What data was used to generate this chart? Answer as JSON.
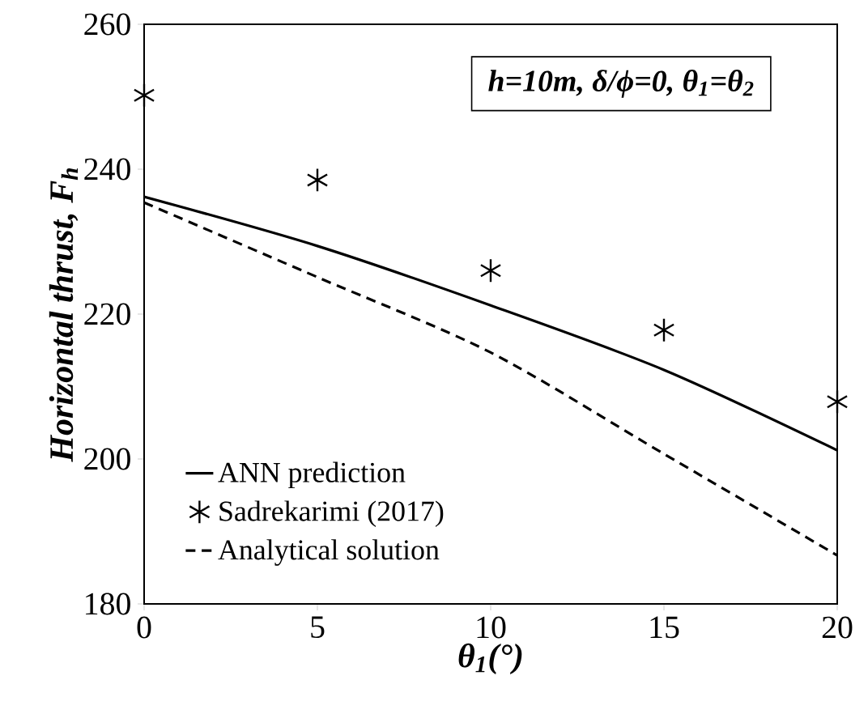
{
  "chart_data": {
    "type": "line",
    "xlabel": "θ$_{1}$(°)",
    "ylabel": "Horizontal thrust, F$_{h}$",
    "annotations": [
      "h=10m, δ/ϕ=0, θ$_{1}$=θ$_{2}$"
    ],
    "xlim": [
      0,
      20
    ],
    "xticks": [
      0,
      5,
      10,
      15,
      20
    ],
    "ylim": [
      180,
      260
    ],
    "yticks": [
      180,
      200,
      220,
      240,
      260
    ],
    "grid": false,
    "legend": "bottom left",
    "series": [
      {
        "name": "ANN prediction",
        "color": "#000000",
        "line_style": "solid",
        "marker": "none",
        "x": [
          0,
          5,
          10,
          15,
          20
        ],
        "values": [
          236.2,
          229.4,
          221.2,
          212.3,
          201.2
        ]
      },
      {
        "name": "Sadrekarimi (2017)",
        "type": "scatter",
        "color": "#000000",
        "marker": "cross",
        "x": [
          0,
          5,
          10,
          15,
          20
        ],
        "values": [
          250.2,
          238.5,
          226.0,
          217.8,
          207.9
        ]
      },
      {
        "name": "Analytical solution",
        "color": "#000000",
        "line_style": "dashed",
        "marker": "none",
        "x": [
          0,
          5,
          10,
          15,
          20
        ],
        "values": [
          235.4,
          225.1,
          214.7,
          200.7,
          186.7
        ]
      }
    ]
  }
}
